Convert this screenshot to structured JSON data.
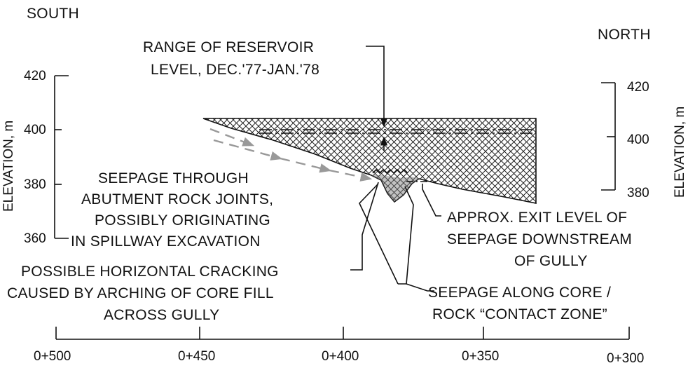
{
  "directions": {
    "south": "SOUTH",
    "north": "NORTH"
  },
  "left_axis": {
    "label": "ELEVATION, m",
    "ticks": [
      "420",
      "400",
      "380",
      "360"
    ]
  },
  "right_axis": {
    "label": "ELEVATION, m",
    "ticks": [
      "420",
      "400",
      "380"
    ]
  },
  "x_axis": {
    "ticks": [
      "0+500",
      "0+450",
      "0+400",
      "0+350",
      "0+300"
    ]
  },
  "annotations": {
    "reservoir": [
      "RANGE OF RESERVOIR",
      "LEVEL, DEC.'77-JAN.'78"
    ],
    "seepage_joints": [
      "SEEPAGE THROUGH",
      "ABUTMENT ROCK JOINTS,",
      "POSSIBLY ORIGINATING",
      "IN SPILLWAY EXCAVATION"
    ],
    "exit_level": [
      "APPROX. EXIT LEVEL OF",
      "SEEPAGE DOWNSTREAM",
      "OF GULLY"
    ],
    "cracking": [
      "POSSIBLE HORIZONTAL CRACKING",
      "CAUSED BY ARCHING OF CORE FILL",
      "ACROSS GULLY"
    ],
    "contact_zone": [
      "SEEPAGE ALONG CORE /",
      "ROCK “CONTACT ZONE”"
    ]
  }
}
